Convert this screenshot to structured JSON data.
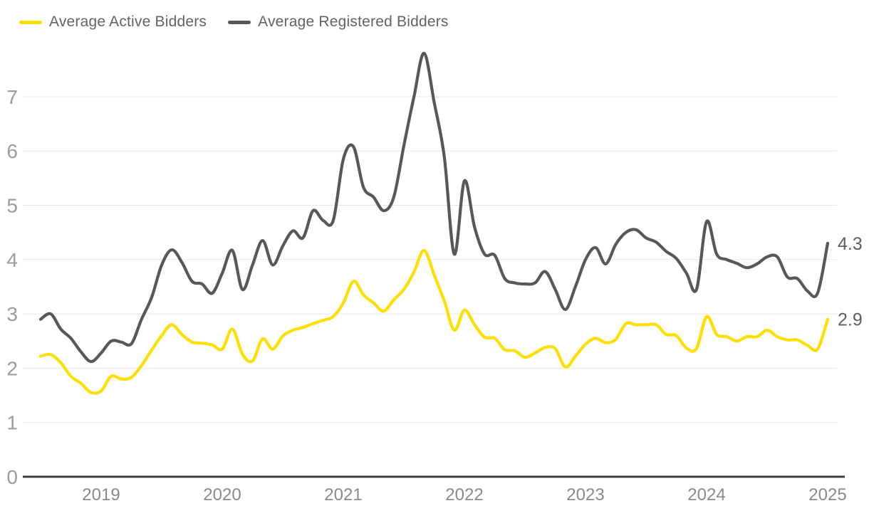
{
  "chart_data": {
    "type": "line",
    "title": "",
    "x_start": "2018-07",
    "x_frequency": "monthly",
    "x_tick_labels": [
      "2019",
      "2020",
      "2021",
      "2022",
      "2023",
      "2024",
      "2025"
    ],
    "x_tick_month_indices": [
      6,
      18,
      30,
      42,
      54,
      66,
      78
    ],
    "y_ticks": [
      0,
      1,
      2,
      3,
      4,
      5,
      6,
      7
    ],
    "ylim": [
      0,
      7.9
    ],
    "grid": "horizontal",
    "legend_position": "top-left",
    "series": [
      {
        "name": "Average Active Bidders",
        "color": "#FFDF00",
        "end_label": "2.9",
        "values": [
          2.22,
          2.25,
          2.1,
          1.85,
          1.72,
          1.55,
          1.58,
          1.85,
          1.8,
          1.83,
          2.05,
          2.33,
          2.6,
          2.8,
          2.62,
          2.48,
          2.46,
          2.43,
          2.35,
          2.72,
          2.26,
          2.13,
          2.54,
          2.35,
          2.59,
          2.7,
          2.75,
          2.82,
          2.88,
          2.95,
          3.2,
          3.6,
          3.35,
          3.2,
          3.05,
          3.26,
          3.45,
          3.77,
          4.17,
          3.72,
          3.24,
          2.7,
          3.07,
          2.8,
          2.57,
          2.55,
          2.34,
          2.32,
          2.2,
          2.28,
          2.38,
          2.36,
          2.02,
          2.22,
          2.44,
          2.55,
          2.47,
          2.53,
          2.82,
          2.8,
          2.8,
          2.8,
          2.62,
          2.6,
          2.37,
          2.36,
          2.95,
          2.62,
          2.58,
          2.5,
          2.58,
          2.58,
          2.7,
          2.58,
          2.52,
          2.52,
          2.42,
          2.35,
          2.9
        ]
      },
      {
        "name": "Average Registered Bidders",
        "color": "#58585A",
        "end_label": "4.3",
        "values": [
          2.9,
          3.0,
          2.72,
          2.55,
          2.3,
          2.12,
          2.28,
          2.5,
          2.48,
          2.45,
          2.9,
          3.3,
          3.9,
          4.18,
          3.95,
          3.6,
          3.55,
          3.38,
          3.75,
          4.17,
          3.45,
          3.9,
          4.35,
          3.9,
          4.25,
          4.53,
          4.4,
          4.9,
          4.72,
          4.72,
          5.85,
          6.08,
          5.33,
          5.15,
          4.9,
          5.15,
          6.1,
          7.0,
          7.8,
          6.9,
          5.9,
          4.1,
          5.45,
          4.6,
          4.1,
          4.08,
          3.65,
          3.57,
          3.55,
          3.57,
          3.78,
          3.45,
          3.08,
          3.5,
          4.0,
          4.22,
          3.92,
          4.28,
          4.5,
          4.55,
          4.4,
          4.32,
          4.15,
          4.02,
          3.75,
          3.45,
          4.7,
          4.1,
          4.0,
          3.93,
          3.85,
          3.92,
          4.05,
          4.05,
          3.68,
          3.65,
          3.42,
          3.38,
          4.3
        ]
      }
    ],
    "colors": {
      "background": "#ffffff",
      "gridline": "#e8e8e8",
      "axis_line": "#3d3d3d",
      "y_tick_text": "#9c9c9c",
      "x_tick_text": "#8a8a8a",
      "legend_text": "#636363",
      "end_label_text": "#5f5f5f"
    }
  }
}
